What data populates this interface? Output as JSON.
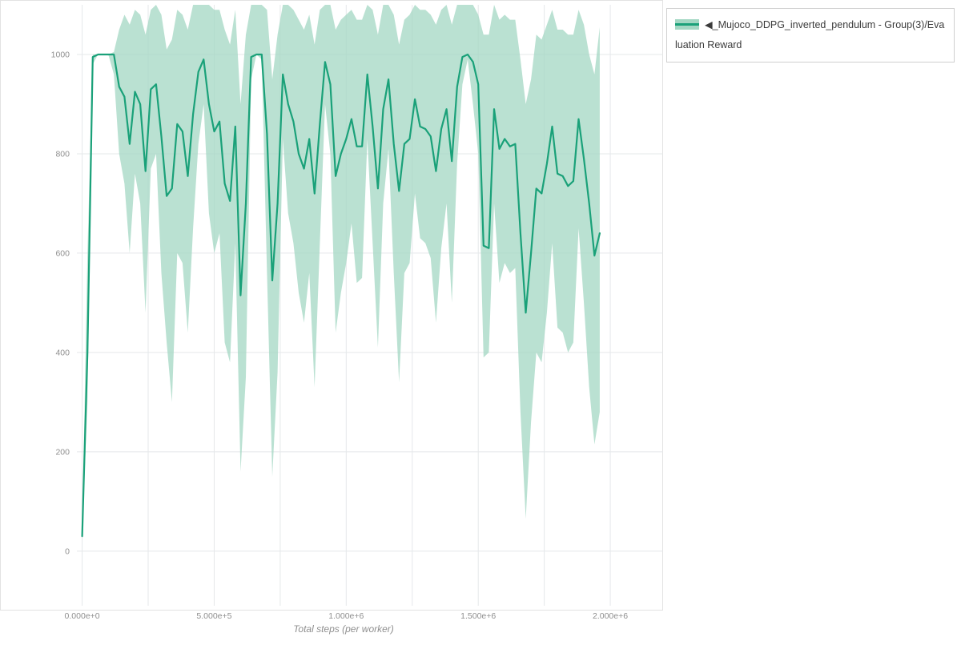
{
  "chart_data": {
    "type": "line",
    "title": "",
    "xlabel": "Total steps (per worker)",
    "ylabel": "",
    "legend_position": "top-right-outside",
    "grid": true,
    "colors": {
      "line": "#1aa179",
      "band": "#a3d7c3",
      "grid": "#e5e8ea",
      "tick_text": "#8f8f8f",
      "figure_border": "#e2e2e2"
    },
    "legend": [
      {
        "label": "◀_Mujoco_DDPG_inverted_pendulum - Group(3)/Evaluation Reward"
      }
    ],
    "x_range_e6": [
      -0.02,
      2.2
    ],
    "y_range": [
      -110,
      1100
    ],
    "x_minor_step_e6": 0.25,
    "x_ticks": [
      {
        "v": 0.0,
        "label": "0.000e+0"
      },
      {
        "v": 0.5,
        "label": "5.000e+5"
      },
      {
        "v": 1.0,
        "label": "1.000e+6"
      },
      {
        "v": 1.5,
        "label": "1.500e+6"
      },
      {
        "v": 2.0,
        "label": "2.000e+6"
      }
    ],
    "y_ticks": [
      0,
      200,
      400,
      600,
      800,
      1000
    ],
    "series": [
      {
        "name": "◀_Mujoco_DDPG_inverted_pendulum - Group(3)/Evaluation Reward",
        "x_unit": "total steps (millions)",
        "x_e6": [
          0,
          0.02,
          0.04,
          0.06,
          0.08,
          0.1,
          0.12,
          0.14,
          0.16,
          0.18,
          0.2,
          0.22,
          0.24,
          0.26,
          0.28,
          0.3,
          0.32,
          0.34,
          0.36,
          0.38,
          0.4,
          0.42,
          0.44,
          0.46,
          0.48,
          0.5,
          0.52,
          0.54,
          0.56,
          0.58,
          0.6,
          0.62,
          0.64,
          0.66,
          0.68,
          0.7,
          0.72,
          0.74,
          0.76,
          0.78,
          0.8,
          0.82,
          0.84,
          0.86,
          0.88,
          0.9,
          0.92,
          0.94,
          0.96,
          0.98,
          1.0,
          1.02,
          1.04,
          1.06,
          1.08,
          1.1,
          1.12,
          1.14,
          1.16,
          1.18,
          1.2,
          1.22,
          1.24,
          1.26,
          1.28,
          1.3,
          1.32,
          1.34,
          1.36,
          1.38,
          1.4,
          1.42,
          1.44,
          1.46,
          1.48,
          1.5,
          1.52,
          1.54,
          1.56,
          1.58,
          1.6,
          1.62,
          1.64,
          1.66,
          1.68,
          1.7,
          1.72,
          1.74,
          1.76,
          1.78,
          1.8,
          1.82,
          1.84,
          1.86,
          1.88,
          1.9,
          1.92,
          1.94,
          1.96
        ],
        "mean": [
          30,
          400,
          995,
          1000,
          1000,
          1000,
          1000,
          935,
          915,
          820,
          925,
          900,
          765,
          930,
          940,
          835,
          715,
          730,
          860,
          845,
          755,
          880,
          965,
          990,
          900,
          845,
          865,
          740,
          705,
          855,
          515,
          700,
          995,
          1000,
          1000,
          840,
          545,
          700,
          960,
          900,
          865,
          800,
          770,
          830,
          720,
          860,
          985,
          940,
          755,
          800,
          830,
          870,
          815,
          815,
          960,
          855,
          730,
          890,
          950,
          820,
          725,
          820,
          830,
          910,
          855,
          850,
          835,
          765,
          850,
          890,
          785,
          935,
          995,
          1000,
          985,
          940,
          615,
          610,
          890,
          810,
          830,
          815,
          820,
          640,
          480,
          600,
          730,
          720,
          780,
          855,
          760,
          755,
          735,
          745,
          870,
          790,
          700,
          595,
          640
        ],
        "low": [
          25,
          300,
          980,
          1000,
          1000,
          998,
          960,
          800,
          740,
          600,
          760,
          700,
          480,
          770,
          800,
          560,
          420,
          300,
          600,
          580,
          440,
          650,
          820,
          900,
          680,
          600,
          640,
          420,
          380,
          620,
          160,
          350,
          950,
          1000,
          990,
          560,
          150,
          360,
          830,
          680,
          620,
          520,
          460,
          560,
          330,
          620,
          900,
          800,
          440,
          520,
          580,
          660,
          540,
          550,
          830,
          620,
          410,
          700,
          810,
          560,
          340,
          560,
          580,
          720,
          630,
          620,
          590,
          460,
          610,
          700,
          500,
          780,
          940,
          990,
          900,
          800,
          390,
          400,
          700,
          540,
          580,
          560,
          570,
          280,
          65,
          260,
          400,
          380,
          480,
          620,
          450,
          440,
          400,
          420,
          650,
          500,
          330,
          215,
          280
        ],
        "high": [
          40,
          600,
          1000,
          1000,
          1000,
          1000,
          1005,
          1050,
          1080,
          1060,
          1090,
          1080,
          1040,
          1090,
          1100,
          1080,
          1010,
          1030,
          1090,
          1080,
          1050,
          1100,
          1100,
          1100,
          1100,
          1090,
          1090,
          1050,
          1020,
          1090,
          900,
          1040,
          1100,
          1100,
          1100,
          1090,
          950,
          1040,
          1100,
          1100,
          1090,
          1070,
          1050,
          1080,
          1020,
          1090,
          1100,
          1100,
          1050,
          1070,
          1080,
          1090,
          1070,
          1070,
          1100,
          1090,
          1040,
          1100,
          1100,
          1080,
          1020,
          1070,
          1080,
          1100,
          1090,
          1090,
          1080,
          1060,
          1090,
          1100,
          1060,
          1100,
          1100,
          1100,
          1100,
          1080,
          1040,
          1040,
          1100,
          1070,
          1080,
          1070,
          1070,
          990,
          900,
          950,
          1040,
          1030,
          1060,
          1090,
          1050,
          1050,
          1040,
          1040,
          1090,
          1060,
          1000,
          960,
          1055
        ]
      }
    ]
  }
}
